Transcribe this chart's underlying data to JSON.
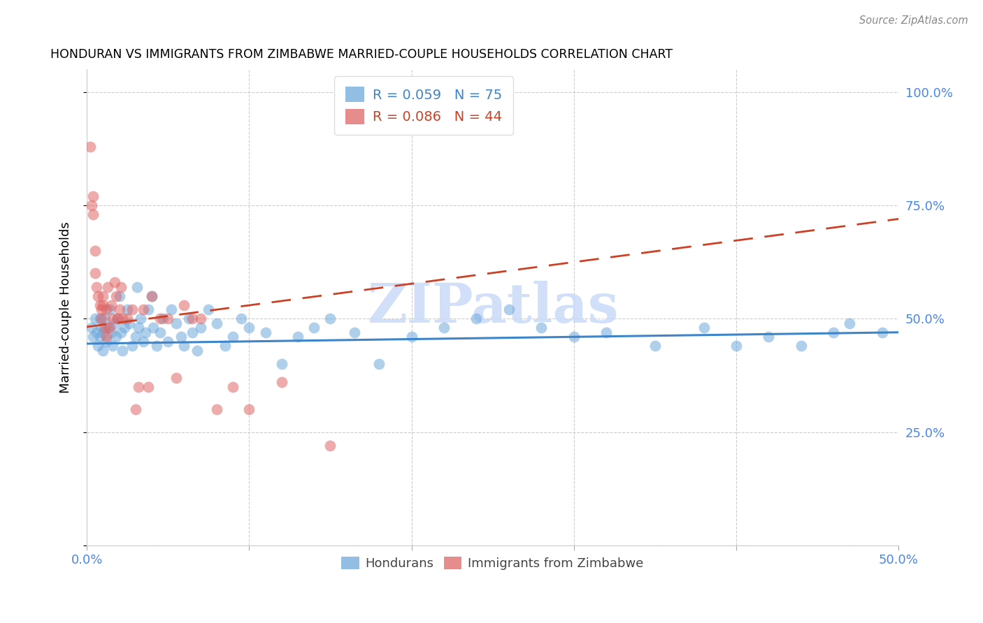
{
  "title": "HONDURAN VS IMMIGRANTS FROM ZIMBABWE MARRIED-COUPLE HOUSEHOLDS CORRELATION CHART",
  "source": "Source: ZipAtlas.com",
  "ylabel": "Married-couple Households",
  "xlim": [
    0.0,
    0.5
  ],
  "ylim": [
    0.0,
    1.05
  ],
  "yticks_right": [
    0.25,
    0.5,
    0.75,
    1.0
  ],
  "yticklabels_right": [
    "25.0%",
    "50.0%",
    "75.0%",
    "100.0%"
  ],
  "xticks": [
    0.0,
    0.1,
    0.2,
    0.3,
    0.4,
    0.5
  ],
  "xticklabels": [
    "0.0%",
    "",
    "",
    "",
    "",
    "50.0%"
  ],
  "legend_blue_label": "R = 0.059   N = 75",
  "legend_pink_label": "R = 0.086   N = 44",
  "blue_scatter_color": "#6fa8dc",
  "pink_scatter_color": "#e06666",
  "blue_line_color": "#3d85c8",
  "pink_line_color": "#cc4125",
  "axis_tick_color": "#4a86e8",
  "watermark_color": "#c9daf8",
  "hon_x": [
    0.003,
    0.004,
    0.005,
    0.006,
    0.007,
    0.008,
    0.008,
    0.009,
    0.01,
    0.01,
    0.011,
    0.012,
    0.013,
    0.014,
    0.015,
    0.016,
    0.017,
    0.018,
    0.019,
    0.02,
    0.021,
    0.022,
    0.023,
    0.025,
    0.026,
    0.028,
    0.03,
    0.031,
    0.032,
    0.033,
    0.035,
    0.036,
    0.038,
    0.04,
    0.041,
    0.043,
    0.045,
    0.047,
    0.05,
    0.052,
    0.055,
    0.058,
    0.06,
    0.063,
    0.065,
    0.068,
    0.07,
    0.075,
    0.08,
    0.085,
    0.09,
    0.095,
    0.1,
    0.11,
    0.12,
    0.13,
    0.14,
    0.15,
    0.165,
    0.18,
    0.2,
    0.22,
    0.24,
    0.26,
    0.28,
    0.3,
    0.32,
    0.35,
    0.38,
    0.4,
    0.42,
    0.44,
    0.46,
    0.47,
    0.49
  ],
  "hon_y": [
    0.48,
    0.46,
    0.5,
    0.47,
    0.44,
    0.5,
    0.46,
    0.48,
    0.43,
    0.47,
    0.5,
    0.45,
    0.48,
    0.52,
    0.47,
    0.44,
    0.49,
    0.46,
    0.5,
    0.55,
    0.47,
    0.43,
    0.48,
    0.52,
    0.49,
    0.44,
    0.46,
    0.57,
    0.48,
    0.5,
    0.45,
    0.47,
    0.52,
    0.55,
    0.48,
    0.44,
    0.47,
    0.5,
    0.45,
    0.52,
    0.49,
    0.46,
    0.44,
    0.5,
    0.47,
    0.43,
    0.48,
    0.52,
    0.49,
    0.44,
    0.46,
    0.5,
    0.48,
    0.47,
    0.4,
    0.46,
    0.48,
    0.5,
    0.47,
    0.4,
    0.46,
    0.48,
    0.5,
    0.52,
    0.48,
    0.46,
    0.47,
    0.44,
    0.48,
    0.44,
    0.46,
    0.44,
    0.47,
    0.49,
    0.47
  ],
  "zim_x": [
    0.002,
    0.003,
    0.004,
    0.004,
    0.005,
    0.005,
    0.006,
    0.007,
    0.008,
    0.009,
    0.009,
    0.01,
    0.01,
    0.011,
    0.012,
    0.012,
    0.013,
    0.014,
    0.015,
    0.016,
    0.017,
    0.018,
    0.019,
    0.02,
    0.021,
    0.022,
    0.025,
    0.028,
    0.03,
    0.032,
    0.035,
    0.038,
    0.04,
    0.045,
    0.05,
    0.055,
    0.06,
    0.065,
    0.07,
    0.08,
    0.09,
    0.1,
    0.12,
    0.15
  ],
  "zim_y": [
    0.88,
    0.75,
    0.77,
    0.73,
    0.65,
    0.6,
    0.57,
    0.55,
    0.53,
    0.52,
    0.5,
    0.53,
    0.55,
    0.48,
    0.46,
    0.52,
    0.57,
    0.48,
    0.53,
    0.5,
    0.58,
    0.55,
    0.5,
    0.52,
    0.57,
    0.5,
    0.5,
    0.52,
    0.3,
    0.35,
    0.52,
    0.35,
    0.55,
    0.5,
    0.5,
    0.37,
    0.53,
    0.5,
    0.5,
    0.3,
    0.35,
    0.3,
    0.36,
    0.22
  ],
  "blue_line_x": [
    0.0,
    0.5
  ],
  "blue_line_y": [
    0.445,
    0.47
  ],
  "pink_line_x": [
    0.0,
    0.5
  ],
  "pink_line_y": [
    0.482,
    0.72
  ]
}
